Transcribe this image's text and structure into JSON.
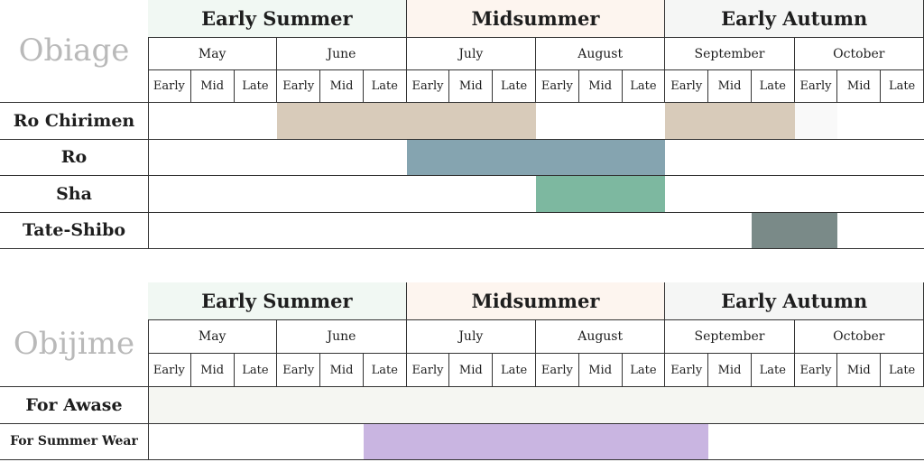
{
  "tables": [
    {
      "title": "Obiage",
      "seasons": [
        {
          "label": "Early Summer",
          "bg": "#f1f8f3"
        },
        {
          "label": "Midsummer",
          "bg": "#fdf5ef"
        },
        {
          "label": "Early Autumn",
          "bg": "#f5f6f5"
        }
      ],
      "months": [
        "May",
        "June",
        "July",
        "August",
        "September",
        "October"
      ],
      "parts": [
        "Early",
        "Mid",
        "Late"
      ],
      "rows": [
        {
          "label": "Ro Chirimen",
          "size": "large",
          "fills": [
            {
              "start": 3,
              "end": 8,
              "color": "#d8cbba"
            },
            {
              "start": 12,
              "end": 14,
              "color": "#d8cbba"
            },
            {
              "start": 15,
              "end": 15,
              "color": "#f9f9f9"
            }
          ]
        },
        {
          "label": "Ro",
          "size": "large",
          "fills": [
            {
              "start": 6,
              "end": 11,
              "color": "#85a4b0"
            }
          ]
        },
        {
          "label": "Sha",
          "size": "large",
          "fills": [
            {
              "start": 9,
              "end": 11,
              "color": "#7db8a0"
            }
          ]
        },
        {
          "label": "Tate-Shibo",
          "size": "large",
          "fills": [
            {
              "start": 14,
              "end": 15,
              "color": "#7a8a88"
            }
          ]
        }
      ]
    },
    {
      "title": "Obijime",
      "seasons": [
        {
          "label": "Early Summer",
          "bg": "#f1f8f3"
        },
        {
          "label": "Midsummer",
          "bg": "#fdf5ef"
        },
        {
          "label": "Early Autumn",
          "bg": "#f5f6f5"
        }
      ],
      "months": [
        "May",
        "June",
        "July",
        "August",
        "September",
        "October"
      ],
      "parts": [
        "Early",
        "Mid",
        "Late"
      ],
      "rows": [
        {
          "label": "For Awase",
          "size": "large",
          "fills": [
            {
              "start": 0,
              "end": 17,
              "color": "#f5f6f2"
            }
          ]
        },
        {
          "label": "For Summer Wear",
          "size": "small",
          "fills": [
            {
              "start": 5,
              "end": 12,
              "color": "#c9b5e1"
            }
          ]
        }
      ]
    }
  ]
}
